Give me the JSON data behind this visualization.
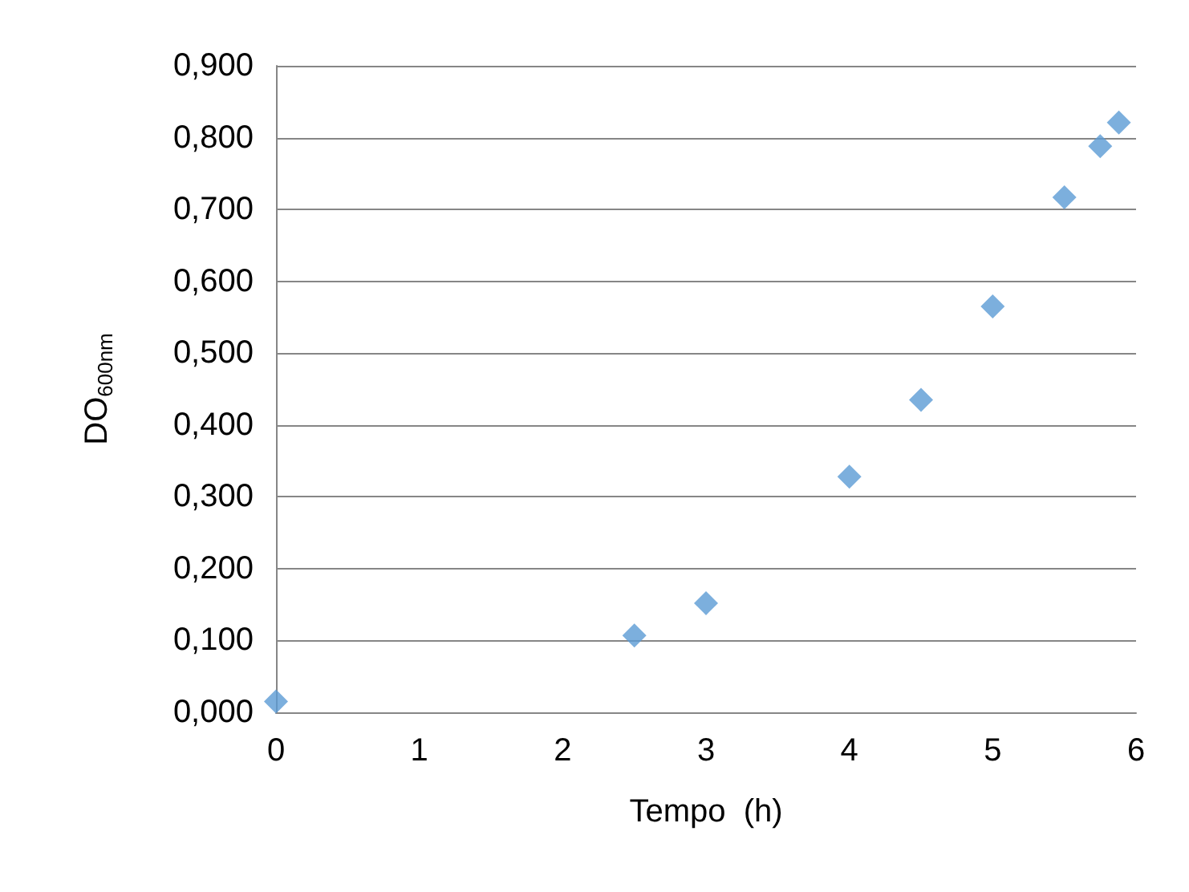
{
  "chart_data": {
    "type": "scatter",
    "xlabel": "Tempo  (h)",
    "ylabel": "DO$_{600nm}$",
    "x": [
      0,
      2.5,
      3,
      4,
      4.5,
      5,
      5.5,
      5.75,
      5.88
    ],
    "series": [
      {
        "color": "#5b9bd5",
        "values": [
          0.015,
          0.107,
          0.152,
          0.328,
          0.435,
          0.565,
          0.717,
          0.788,
          0.821
        ]
      }
    ],
    "xlim": [
      0,
      6
    ],
    "xticks": [
      0,
      1,
      2,
      3,
      4,
      5,
      6
    ],
    "ylim": [
      0,
      0.9
    ],
    "yticks": [
      {
        "value": 0,
        "label": "0,000"
      },
      {
        "value": 0.1,
        "label": "0,100"
      },
      {
        "value": 0.2,
        "label": "0,200"
      },
      {
        "value": 0.3,
        "label": "0,300"
      },
      {
        "value": 0.4,
        "label": "0,400"
      },
      {
        "value": 0.5,
        "label": "0,500"
      },
      {
        "value": 0.6,
        "label": "0,600"
      },
      {
        "value": 0.7,
        "label": "0,700"
      },
      {
        "value": 0.8,
        "label": "0,800"
      },
      {
        "value": 0.9,
        "label": "0,900"
      }
    ],
    "grid": "y",
    "marker": "diamond"
  }
}
